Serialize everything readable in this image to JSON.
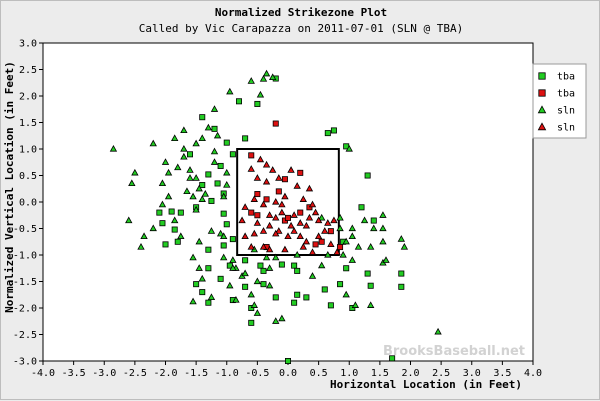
{
  "chart_data": {
    "type": "scatter",
    "title": "Normalized Strikezone Plot",
    "subtitle": "Called by Vic Carapazza on 2011-07-01 (SLN @ TBA)",
    "xlabel": "Horizontal Location (in Feet)",
    "ylabel": "Normalized Vertical Location (in Feet)",
    "xlim": [
      -4.0,
      4.0
    ],
    "ylim": [
      -3.0,
      3.0
    ],
    "x_ticks": [
      "-4.0",
      "-3.5",
      "-3.0",
      "-2.5",
      "-2.0",
      "-1.5",
      "-1.0",
      "-0.5",
      "0.0",
      "0.5",
      "1.0",
      "1.5",
      "2.0",
      "2.5",
      "3.0",
      "3.5",
      "4.0"
    ],
    "y_ticks": [
      "3.0",
      "2.5",
      "2.0",
      "1.5",
      "1.0",
      "0.5",
      "0.0",
      "-0.5",
      "-1.0",
      "-1.5",
      "-2.0",
      "-2.5",
      "-3.0"
    ],
    "x_tick_values": [
      -4.0,
      -3.5,
      -3.0,
      -2.5,
      -2.0,
      -1.5,
      -1.0,
      -0.5,
      0.0,
      0.5,
      1.0,
      1.5,
      2.0,
      2.5,
      3.0,
      3.5,
      4.0
    ],
    "y_tick_values": [
      3.0,
      2.5,
      2.0,
      1.5,
      1.0,
      0.5,
      0.0,
      -0.5,
      -1.0,
      -1.5,
      -2.0,
      -2.5,
      -3.0
    ],
    "strike_zone": {
      "x": [
        -0.83,
        0.83
      ],
      "y": [
        -1.0,
        1.0
      ]
    },
    "grid": false,
    "legend_position": "top-right",
    "watermark": "BrooksBaseball.net",
    "series": [
      {
        "name": "tba",
        "marker": "square",
        "color": "#22cc22",
        "points": [
          [
            -0.2,
            2.33
          ],
          [
            -0.5,
            1.85
          ],
          [
            -0.8,
            1.9
          ],
          [
            -1.4,
            1.6
          ],
          [
            -1.2,
            1.38
          ],
          [
            -1.0,
            1.12
          ],
          [
            -0.7,
            1.2
          ],
          [
            -0.9,
            0.9
          ],
          [
            -1.1,
            0.68
          ],
          [
            -1.6,
            0.9
          ],
          [
            -1.3,
            0.52
          ],
          [
            -1.4,
            0.32
          ],
          [
            -1.15,
            0.35
          ],
          [
            -1.05,
            0.16
          ],
          [
            -1.25,
            0.02
          ],
          [
            -1.5,
            -0.1
          ],
          [
            -1.75,
            -0.2
          ],
          [
            -1.9,
            -0.18
          ],
          [
            -2.1,
            -0.2
          ],
          [
            -2.05,
            -0.4
          ],
          [
            -1.85,
            -0.52
          ],
          [
            -1.05,
            -0.22
          ],
          [
            -1.0,
            -0.42
          ],
          [
            -1.8,
            -0.75
          ],
          [
            -2.0,
            -0.8
          ],
          [
            -1.3,
            -0.9
          ],
          [
            -1.05,
            -0.82
          ],
          [
            -0.9,
            -0.7
          ],
          [
            -0.7,
            -1.1
          ],
          [
            -0.95,
            -1.2
          ],
          [
            -1.3,
            -1.25
          ],
          [
            -0.45,
            -1.2
          ],
          [
            -0.1,
            -1.18
          ],
          [
            0.1,
            -1.2
          ],
          [
            0.15,
            -1.3
          ],
          [
            -0.4,
            -1.3
          ],
          [
            -1.1,
            -1.45
          ],
          [
            -0.7,
            -1.6
          ],
          [
            -0.4,
            -1.55
          ],
          [
            -1.5,
            -1.55
          ],
          [
            -1.4,
            -1.7
          ],
          [
            -0.2,
            -1.8
          ],
          [
            0.3,
            -1.8
          ],
          [
            0.6,
            -1.65
          ],
          [
            0.85,
            -1.55
          ],
          [
            0.95,
            -1.25
          ],
          [
            0.9,
            -0.75
          ],
          [
            0.15,
            -1.75
          ],
          [
            -1.3,
            -1.9
          ],
          [
            -0.9,
            -1.85
          ],
          [
            -0.6,
            -2.0
          ],
          [
            0.1,
            -1.9
          ],
          [
            0.7,
            -1.95
          ],
          [
            1.3,
            -1.35
          ],
          [
            1.35,
            -1.58
          ],
          [
            1.85,
            -1.35
          ],
          [
            1.85,
            -1.6
          ],
          [
            1.05,
            -2.0
          ],
          [
            -0.6,
            -2.28
          ],
          [
            1.7,
            -2.95
          ],
          [
            0.0,
            -3.0
          ],
          [
            0.65,
            1.3
          ],
          [
            0.75,
            1.35
          ],
          [
            0.95,
            1.05
          ],
          [
            1.3,
            0.5
          ],
          [
            1.2,
            -0.1
          ],
          [
            1.4,
            -0.35
          ]
        ]
      },
      {
        "name": "tba",
        "marker": "square",
        "color": "#dd1111",
        "points": [
          [
            -0.2,
            1.48
          ],
          [
            -0.6,
            0.88
          ],
          [
            -0.05,
            0.43
          ],
          [
            0.2,
            0.55
          ],
          [
            -0.15,
            0.2
          ],
          [
            -0.5,
            0.15
          ],
          [
            -0.35,
            0.05
          ],
          [
            0.35,
            -0.1
          ],
          [
            0.2,
            -0.2
          ],
          [
            -0.05,
            -0.35
          ],
          [
            -0.5,
            -0.25
          ],
          [
            0.7,
            -0.55
          ],
          [
            0.55,
            -0.75
          ],
          [
            0.45,
            -0.8
          ],
          [
            -0.35,
            -0.85
          ],
          [
            0.85,
            -0.85
          ],
          [
            -0.6,
            -0.2
          ],
          [
            0.0,
            -0.3
          ]
        ]
      },
      {
        "name": "sln",
        "marker": "triangle",
        "color": "#22cc22",
        "points": [
          [
            -0.35,
            2.42
          ],
          [
            -0.4,
            2.32
          ],
          [
            -0.25,
            2.35
          ],
          [
            -0.6,
            2.28
          ],
          [
            -0.95,
            2.08
          ],
          [
            -0.45,
            2.02
          ],
          [
            -1.2,
            1.75
          ],
          [
            -1.7,
            1.35
          ],
          [
            -1.3,
            1.4
          ],
          [
            -1.85,
            1.2
          ],
          [
            -2.2,
            1.1
          ],
          [
            -1.5,
            1.1
          ],
          [
            -1.7,
            0.85
          ],
          [
            -1.8,
            0.65
          ],
          [
            -1.2,
            0.75
          ],
          [
            -2.0,
            0.75
          ],
          [
            -2.5,
            0.55
          ],
          [
            -2.55,
            0.35
          ],
          [
            -2.85,
            1.0
          ],
          [
            -2.05,
            0.35
          ],
          [
            -1.95,
            0.55
          ],
          [
            -1.6,
            0.45
          ],
          [
            -1.5,
            0.45
          ],
          [
            -1.45,
            0.25
          ],
          [
            -1.35,
            0.15
          ],
          [
            -1.55,
            0.1
          ],
          [
            -1.4,
            0.05
          ],
          [
            -1.5,
            -0.15
          ],
          [
            -1.65,
            0.2
          ],
          [
            -1.95,
            0.1
          ],
          [
            -2.05,
            -0.05
          ],
          [
            -1.85,
            -0.35
          ],
          [
            -1.75,
            -0.65
          ],
          [
            -2.2,
            -0.5
          ],
          [
            -2.4,
            -0.85
          ],
          [
            -2.35,
            -0.65
          ],
          [
            -2.6,
            -0.35
          ],
          [
            -1.1,
            -0.6
          ],
          [
            -1.25,
            -0.55
          ],
          [
            -1.45,
            -0.75
          ],
          [
            -1.55,
            -1.05
          ],
          [
            -1.45,
            -1.25
          ],
          [
            -1.05,
            -1.05
          ],
          [
            -0.9,
            -1.1
          ],
          [
            -0.85,
            -1.25
          ],
          [
            -0.75,
            -1.4
          ],
          [
            -1.4,
            -1.45
          ],
          [
            -1.55,
            -1.88
          ],
          [
            -0.95,
            -1.58
          ],
          [
            -0.9,
            -1.25
          ],
          [
            -0.7,
            -1.35
          ],
          [
            -0.5,
            -1.5
          ],
          [
            -0.85,
            -1.85
          ],
          [
            -0.6,
            -1.75
          ],
          [
            -0.3,
            -1.58
          ],
          [
            -0.35,
            -1.05
          ],
          [
            -0.55,
            -0.9
          ],
          [
            -0.2,
            -1.05
          ],
          [
            0.15,
            -1.0
          ],
          [
            0.4,
            -1.4
          ],
          [
            0.55,
            -1.2
          ],
          [
            0.65,
            -1.0
          ],
          [
            0.9,
            -1.0
          ],
          [
            1.05,
            -1.1
          ],
          [
            1.15,
            -0.85
          ],
          [
            1.35,
            -0.85
          ],
          [
            1.55,
            -0.75
          ],
          [
            1.55,
            -0.5
          ],
          [
            1.25,
            -0.35
          ],
          [
            1.05,
            -0.5
          ],
          [
            1.05,
            -0.65
          ],
          [
            1.4,
            -0.5
          ],
          [
            1.55,
            -0.25
          ],
          [
            1.55,
            -1.15
          ],
          [
            1.6,
            -1.1
          ],
          [
            0.95,
            -1.75
          ],
          [
            1.1,
            -1.95
          ],
          [
            1.35,
            -1.95
          ],
          [
            -0.5,
            -2.1
          ],
          [
            -0.1,
            -2.2
          ],
          [
            -0.55,
            -1.95
          ],
          [
            1.85,
            -0.7
          ],
          [
            1.9,
            -0.85
          ],
          [
            2.45,
            -2.45
          ],
          [
            -1.0,
            0.55
          ],
          [
            -1.0,
            0.32
          ],
          [
            -1.05,
            0.1
          ],
          [
            -1.05,
            -0.65
          ],
          [
            1.0,
            1.0
          ],
          [
            -1.2,
            0.95
          ],
          [
            -1.6,
            0.6
          ],
          [
            -1.15,
            1.25
          ],
          [
            -1.4,
            1.2
          ],
          [
            -1.7,
            1.0
          ],
          [
            0.85,
            -0.5
          ],
          [
            0.55,
            -0.3
          ],
          [
            0.85,
            -0.3
          ],
          [
            0.95,
            -0.75
          ],
          [
            -0.3,
            -1.25
          ],
          [
            -0.2,
            -2.25
          ],
          [
            -1.25,
            -1.8
          ]
        ]
      },
      {
        "name": "sln",
        "marker": "triangle",
        "color": "#dd1111",
        "points": [
          [
            -0.45,
            0.8
          ],
          [
            -0.25,
            0.6
          ],
          [
            -0.35,
            0.38
          ],
          [
            0.05,
            0.6
          ],
          [
            0.15,
            0.3
          ],
          [
            -0.6,
            0.62
          ],
          [
            -0.5,
            0.45
          ],
          [
            -0.05,
            0.1
          ],
          [
            -0.4,
            -0.05
          ],
          [
            -0.55,
            0.05
          ],
          [
            -0.7,
            -0.1
          ],
          [
            -0.75,
            -0.35
          ],
          [
            -0.5,
            -0.4
          ],
          [
            -0.3,
            -0.25
          ],
          [
            -0.2,
            -0.3
          ],
          [
            -0.1,
            -0.2
          ],
          [
            0.05,
            -0.45
          ],
          [
            0.2,
            -0.4
          ],
          [
            0.1,
            -0.55
          ],
          [
            0.3,
            -0.45
          ],
          [
            0.35,
            -0.3
          ],
          [
            0.45,
            -0.2
          ],
          [
            0.5,
            -0.35
          ],
          [
            0.65,
            -0.4
          ],
          [
            0.75,
            -0.35
          ],
          [
            0.6,
            -0.55
          ],
          [
            0.3,
            -0.75
          ],
          [
            0.2,
            -0.65
          ],
          [
            0.0,
            -0.65
          ],
          [
            -0.15,
            -0.55
          ],
          [
            -0.2,
            -0.6
          ],
          [
            -0.4,
            -0.55
          ],
          [
            -0.55,
            -0.6
          ],
          [
            -0.6,
            -0.85
          ],
          [
            -0.7,
            -0.65
          ],
          [
            -0.4,
            -0.85
          ],
          [
            0.4,
            -0.95
          ],
          [
            0.5,
            -0.65
          ],
          [
            0.7,
            -0.8
          ],
          [
            0.8,
            -0.95
          ],
          [
            -0.3,
            -0.9
          ],
          [
            -0.05,
            -0.9
          ],
          [
            0.25,
            -0.85
          ],
          [
            0.35,
            0.25
          ],
          [
            0.4,
            -0.05
          ],
          [
            -0.3,
            -0.45
          ],
          [
            0.1,
            -0.25
          ],
          [
            -0.1,
            -0.05
          ],
          [
            -0.2,
            0.0
          ],
          [
            -0.35,
            0.7
          ],
          [
            -0.15,
            0.45
          ],
          [
            0.25,
            0.05
          ]
        ]
      }
    ]
  }
}
